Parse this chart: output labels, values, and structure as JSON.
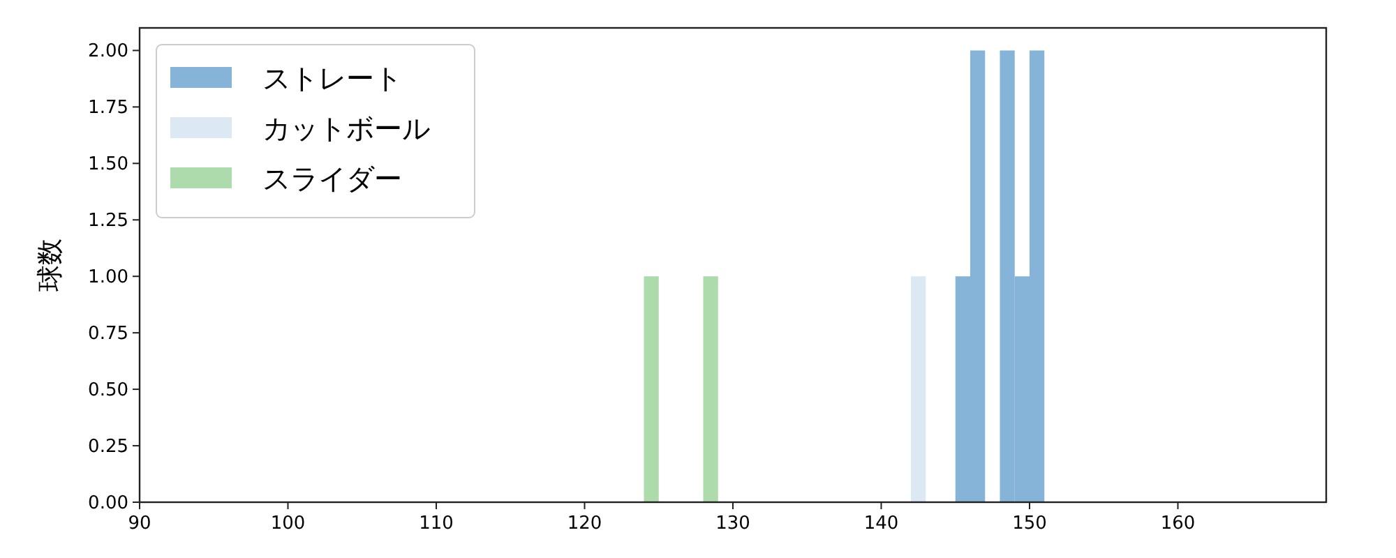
{
  "chart_data": {
    "type": "histogram",
    "ylabel": "球数",
    "bins": [
      124,
      125,
      126,
      127,
      128,
      129,
      130,
      131,
      132,
      133,
      134,
      135,
      136,
      137,
      138,
      139,
      140,
      141,
      142,
      143,
      144,
      145,
      146,
      147,
      148,
      149,
      150,
      151
    ],
    "series": [
      {
        "name": "ストレート",
        "color": "#85b4d8",
        "values": [
          0,
          0,
          0,
          0,
          0,
          0,
          0,
          0,
          0,
          0,
          0,
          0,
          0,
          0,
          0,
          0,
          0,
          0,
          0,
          0,
          0,
          1,
          2,
          0,
          2,
          1,
          2
        ]
      },
      {
        "name": "カットボール",
        "color": "#dce8f4",
        "values": [
          0,
          0,
          0,
          0,
          0,
          0,
          0,
          0,
          0,
          0,
          0,
          0,
          0,
          0,
          0,
          0,
          0,
          0,
          1,
          0,
          0,
          0,
          0,
          0,
          0,
          0,
          0
        ]
      },
      {
        "name": "スライダー",
        "color": "#addbab",
        "values": [
          1,
          0,
          0,
          0,
          1,
          0,
          0,
          0,
          0,
          0,
          0,
          0,
          0,
          0,
          0,
          0,
          0,
          0,
          0,
          0,
          0,
          0,
          0,
          0,
          0,
          0,
          0
        ]
      }
    ],
    "xlim": [
      90,
      170
    ],
    "xticks": [
      90,
      100,
      110,
      120,
      130,
      140,
      150,
      160
    ],
    "ylim": [
      0,
      2.1
    ],
    "yticks": [
      {
        "value": 0,
        "label": "0.00"
      },
      {
        "value": 0.25,
        "label": "0.25"
      },
      {
        "value": 0.5,
        "label": "0.50"
      },
      {
        "value": 0.75,
        "label": "0.75"
      },
      {
        "value": 1,
        "label": "1.00"
      },
      {
        "value": 1.25,
        "label": "1.25"
      },
      {
        "value": 1.5,
        "label": "1.50"
      },
      {
        "value": 1.75,
        "label": "1.75"
      },
      {
        "value": 2,
        "label": "2.00"
      }
    ],
    "grid": false,
    "legend": "top left"
  }
}
